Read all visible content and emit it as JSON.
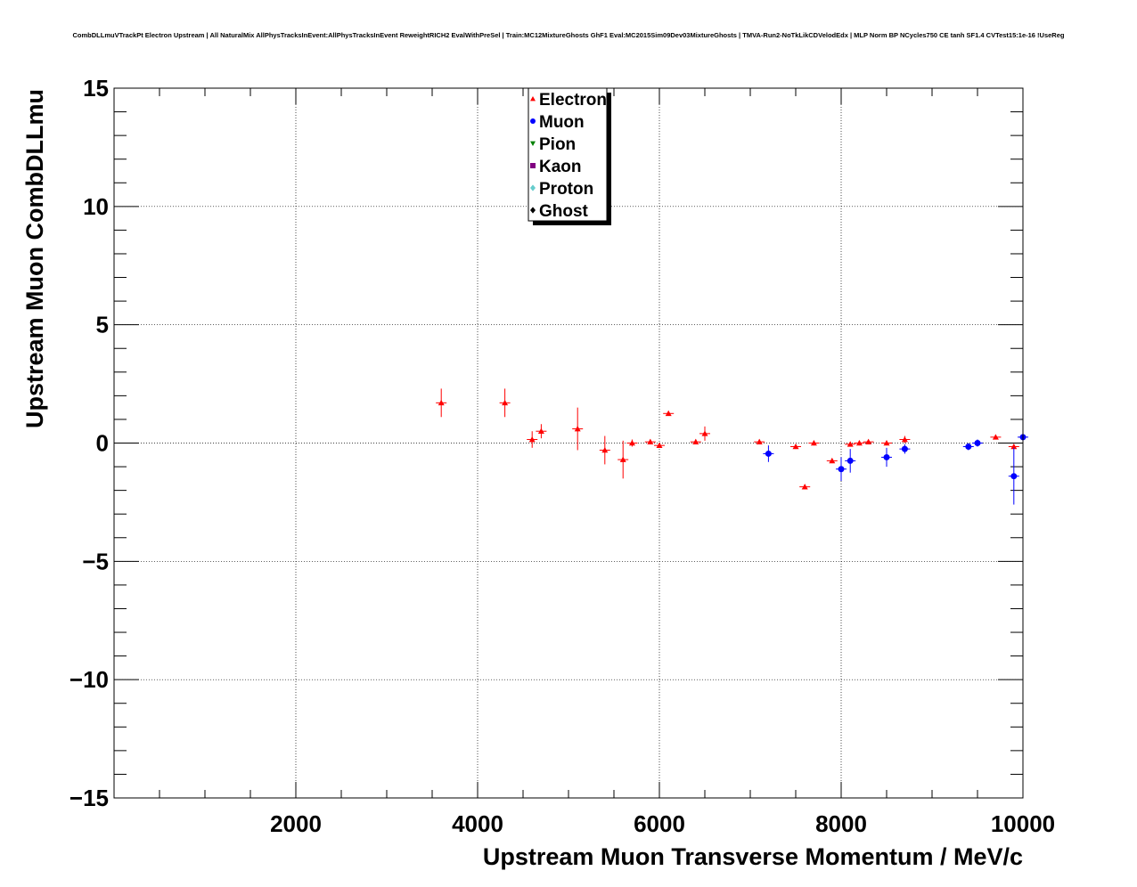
{
  "chart_data": {
    "type": "scatter",
    "title": "CombDLLmuVTrackPt Electron Upstream | All NaturalMix AllPhysTracksInEvent:AllPhysTracksInEvent ReweightRICH2 EvalWithPreSel | Train:MC12MixtureGhosts GhF1 Eval:MC2015Sim09Dev03MixtureGhosts | TMVA-Run2-NoTkLikCDVelodEdx | MLP Norm BP NCycles750 CE tanh SF1.4 CVTest15:1e-16 !UseReg",
    "xlabel": "Upstream Muon Transverse Momentum / MeV/c",
    "ylabel": "Upstream Muon CombDLLmu",
    "xlim": [
      0,
      10000
    ],
    "ylim": [
      -15,
      15
    ],
    "x_ticks": [
      2000,
      4000,
      6000,
      8000,
      10000
    ],
    "x_tick_labels": [
      "2000",
      "4000",
      "6000",
      "8000",
      "10000"
    ],
    "y_ticks": [
      -15,
      -10,
      -5,
      0,
      5,
      10,
      15
    ],
    "y_tick_labels": [
      "−15",
      "−10",
      "−5",
      "0",
      "5",
      "10",
      "15"
    ],
    "grid": true,
    "legend_position": "top-center",
    "series": [
      {
        "name": "Electron",
        "marker": "triangle-up",
        "color": "#ff0000",
        "points": [
          {
            "x": 3600,
            "y": 1.7,
            "yerr": 0.6
          },
          {
            "x": 4300,
            "y": 1.7,
            "yerr": 0.6
          },
          {
            "x": 4600,
            "y": 0.15,
            "yerr": 0.35
          },
          {
            "x": 4700,
            "y": 0.5,
            "yerr": 0.3
          },
          {
            "x": 5100,
            "y": 0.6,
            "yerr": 0.9
          },
          {
            "x": 5400,
            "y": -0.3,
            "yerr": 0.6
          },
          {
            "x": 5600,
            "y": -0.7,
            "yerr": 0.8
          },
          {
            "x": 5700,
            "y": 0.0,
            "yerr": 0.15
          },
          {
            "x": 5900,
            "y": 0.05,
            "yerr": 0.1
          },
          {
            "x": 6000,
            "y": -0.1,
            "yerr": 0.1
          },
          {
            "x": 6100,
            "y": 1.25,
            "yerr": 0.1
          },
          {
            "x": 6400,
            "y": 0.05,
            "yerr": 0.1
          },
          {
            "x": 6500,
            "y": 0.4,
            "yerr": 0.3
          },
          {
            "x": 7100,
            "y": 0.05,
            "yerr": 0.1
          },
          {
            "x": 7500,
            "y": -0.15,
            "yerr": 0.1
          },
          {
            "x": 7600,
            "y": -1.85,
            "yerr": 0.1
          },
          {
            "x": 7700,
            "y": 0.0,
            "yerr": 0.1
          },
          {
            "x": 7900,
            "y": -0.75,
            "yerr": 0.1
          },
          {
            "x": 8100,
            "y": -0.05,
            "yerr": 0.1
          },
          {
            "x": 8200,
            "y": 0.0,
            "yerr": 0.1
          },
          {
            "x": 8300,
            "y": 0.05,
            "yerr": 0.1
          },
          {
            "x": 8500,
            "y": 0.0,
            "yerr": 0.1
          },
          {
            "x": 8700,
            "y": 0.15,
            "yerr": 0.15
          },
          {
            "x": 9700,
            "y": 0.25,
            "yerr": 0.1
          },
          {
            "x": 9900,
            "y": -0.15,
            "yerr": 0.1
          }
        ]
      },
      {
        "name": "Muon",
        "marker": "circle",
        "color": "#0000ff",
        "points": [
          {
            "x": 7200,
            "y": -0.45,
            "yerr": 0.35
          },
          {
            "x": 8000,
            "y": -1.1,
            "yerr": 0.5
          },
          {
            "x": 8100,
            "y": -0.75,
            "yerr": 0.5
          },
          {
            "x": 8500,
            "y": -0.6,
            "yerr": 0.4
          },
          {
            "x": 8700,
            "y": -0.25,
            "yerr": 0.2
          },
          {
            "x": 9400,
            "y": -0.15,
            "yerr": 0.15
          },
          {
            "x": 9500,
            "y": 0.0,
            "yerr": 0.15
          },
          {
            "x": 9900,
            "y": -1.4,
            "yerr": 1.2
          },
          {
            "x": 10000,
            "y": 0.25,
            "yerr": 0.2
          }
        ]
      },
      {
        "name": "Pion",
        "marker": "triangle-down",
        "color": "#008000",
        "points": []
      },
      {
        "name": "Kaon",
        "marker": "square",
        "color": "#800080",
        "points": []
      },
      {
        "name": "Proton",
        "marker": "diamond",
        "color": "#66cccc",
        "points": []
      },
      {
        "name": "Ghost",
        "marker": "diamond",
        "color": "#000000",
        "points": []
      }
    ]
  }
}
